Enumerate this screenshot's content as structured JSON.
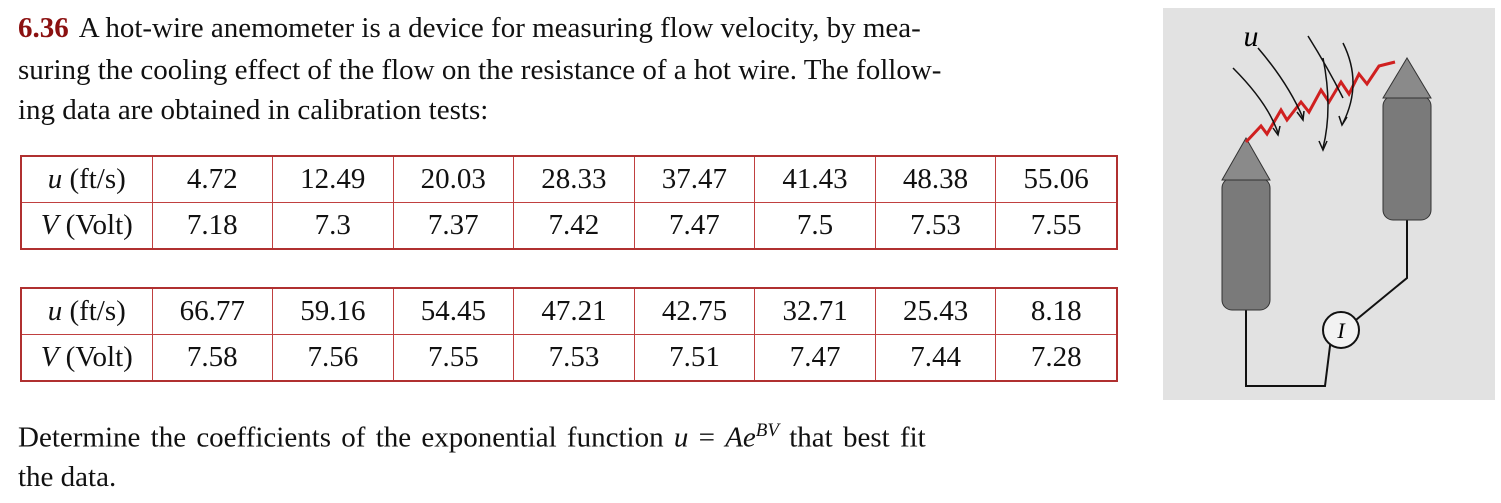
{
  "problem": {
    "number": "6.36",
    "intro_lines": [
      "A hot-wire anemometer is a device for measuring flow velocity, by mea-",
      "suring the cooling effect of the flow on the resistance of a hot wire. The follow-",
      "ing data are obtained in calibration tests:"
    ]
  },
  "tables": [
    {
      "rows": [
        {
          "symbol": "u",
          "unit": "(ft/s)",
          "values": [
            4.72,
            12.49,
            20.03,
            28.33,
            37.47,
            41.43,
            48.38,
            55.06
          ]
        },
        {
          "symbol": "V",
          "unit": "(Volt)",
          "values": [
            7.18,
            7.3,
            7.37,
            7.42,
            7.47,
            7.5,
            7.53,
            7.55
          ]
        }
      ]
    },
    {
      "rows": [
        {
          "symbol": "u",
          "unit": "(ft/s)",
          "values": [
            66.77,
            59.16,
            54.45,
            47.21,
            42.75,
            32.71,
            25.43,
            8.18
          ]
        },
        {
          "symbol": "V",
          "unit": "(Volt)",
          "values": [
            7.58,
            7.56,
            7.55,
            7.53,
            7.51,
            7.47,
            7.44,
            7.28
          ]
        }
      ]
    }
  ],
  "closing": {
    "text_before": "Determine the coefficients of the exponential function",
    "lhs": "u",
    "equals": "=",
    "rhs": "Ae",
    "exponent": "BV",
    "text_after": "that best fit",
    "line2": "the data."
  },
  "figure": {
    "flow_label": "u",
    "current_label": "I"
  }
}
